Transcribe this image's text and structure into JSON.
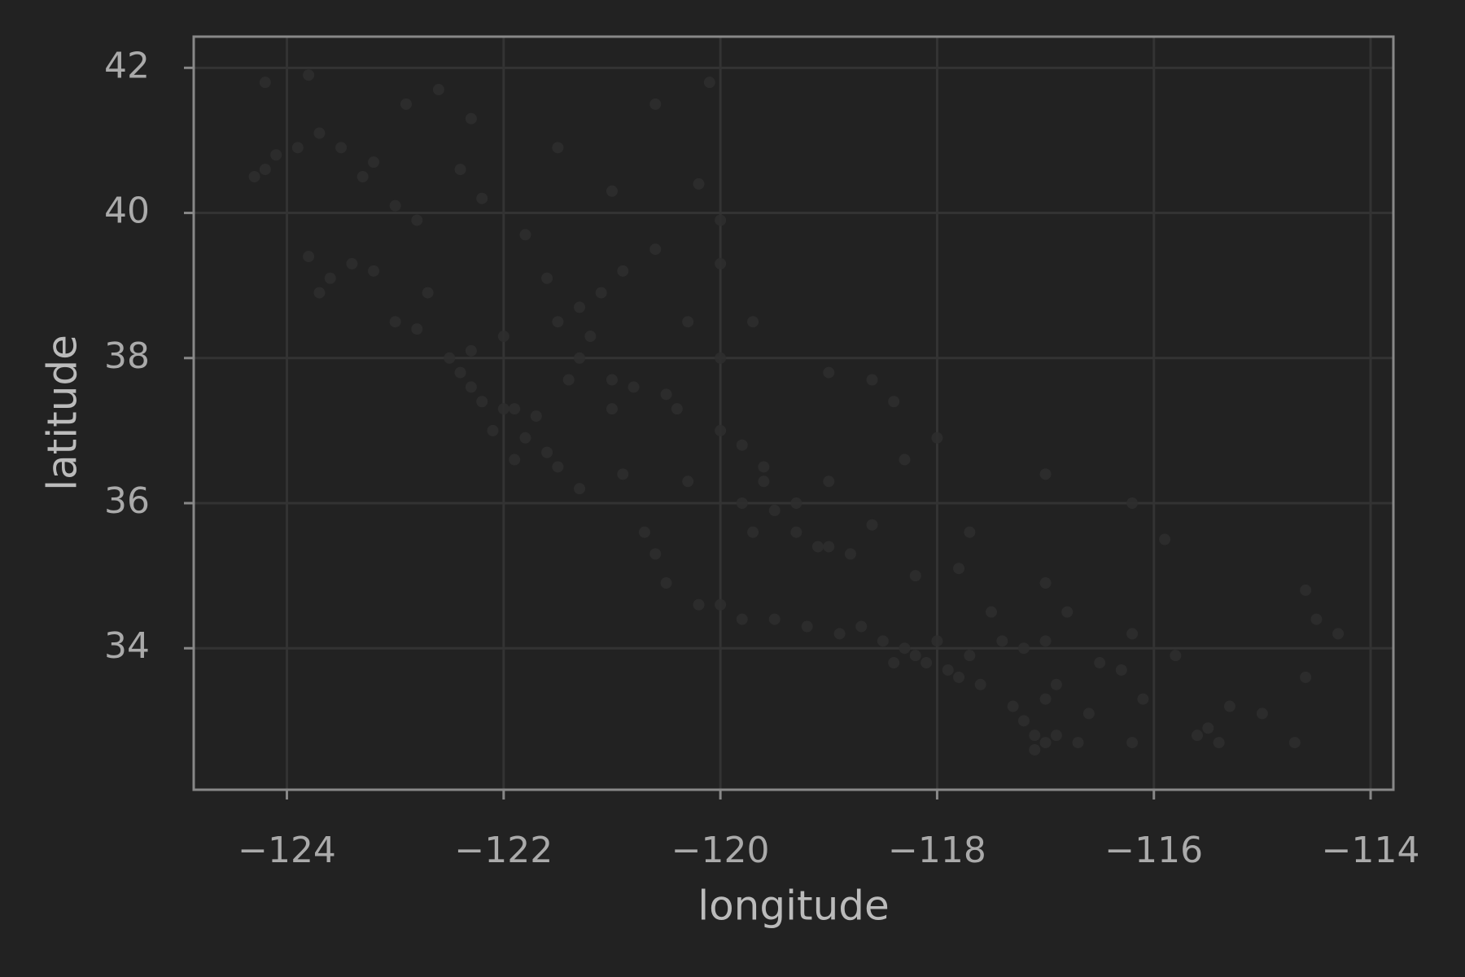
{
  "chart_data": {
    "type": "scatter",
    "xlabel": "longitude",
    "ylabel": "latitude",
    "color": "#2e2e2e",
    "grid": true,
    "xlim": [
      -124.86,
      -113.79
    ],
    "ylim": [
      32.05,
      42.43
    ],
    "xticks": [
      {
        "value": -124,
        "label": "−124"
      },
      {
        "value": -122,
        "label": "−122"
      },
      {
        "value": -120,
        "label": "−120"
      },
      {
        "value": -118,
        "label": "−118"
      },
      {
        "value": -116,
        "label": "−116"
      },
      {
        "value": -114,
        "label": "−114"
      }
    ],
    "yticks": [
      34,
      36,
      38,
      40,
      42
    ],
    "x": [
      -124.2,
      -124.1,
      -124.2,
      -123.9,
      -124.3,
      -123.8,
      -123.7,
      -123.5,
      -123.3,
      -123.8,
      -123.6,
      -123.4,
      -123.2,
      -123.7,
      -123.0,
      -122.8,
      -122.7,
      -122.5,
      -122.4,
      -122.3,
      -122.2,
      -122.0,
      -121.9,
      -121.9,
      -121.8,
      -121.6,
      -121.3,
      -120.7,
      -120.6,
      -120.5,
      -120.2,
      -119.8,
      -119.2,
      -118.9,
      -118.5,
      -118.3,
      -118.2,
      -118.1,
      -117.9,
      -117.8,
      -117.6,
      -117.3,
      -117.2,
      -117.1,
      -117.0,
      -117.1,
      -116.9,
      -117.4,
      -117.2,
      -117.0,
      -116.5,
      -116.3,
      -116.2,
      -115.8,
      -115.5,
      -115.6,
      -115.4,
      -115.3,
      -114.6,
      -114.5,
      -114.3,
      -114.6,
      -114.7,
      -115.0,
      -116.2,
      -115.9,
      -117.0,
      -117.7,
      -117.8,
      -118.2,
      -118.8,
      -119.0,
      -119.1,
      -119.3,
      -119.3,
      -119.6,
      -119.8,
      -120.0,
      -120.4,
      -120.5,
      -120.8,
      -121.0,
      -121.3,
      -121.5,
      -121.3,
      -121.1,
      -121.6,
      -121.8,
      -122.2,
      -122.4,
      -122.3,
      -122.6,
      -121.5,
      -120.6,
      -120.1,
      -120.2,
      -120.0,
      -120.0,
      -120.6,
      -121.0,
      -120.9,
      -121.2,
      -121.4,
      -121.7,
      -122.1,
      -121.5,
      -120.9,
      -120.3,
      -119.8,
      -119.5,
      -119.7,
      -119.6,
      -119.0,
      -118.6,
      -118.4,
      -118.6,
      -119.0,
      -118.3,
      -118.0,
      -122.0,
      -122.3,
      -121.0,
      -120.0,
      -120.3,
      -119.7,
      -122.8,
      -123.2,
      -122.9,
      -123.0,
      -120.0,
      -119.5,
      -118.7,
      -117.5,
      -117.0,
      -116.8,
      -117.7,
      -118.0,
      -118.4,
      -116.9,
      -116.6,
      -116.2,
      -116.1,
      -117.0,
      -116.7
    ],
    "y": [
      41.8,
      40.8,
      40.6,
      40.9,
      40.5,
      41.9,
      41.1,
      40.9,
      40.5,
      39.4,
      39.1,
      39.3,
      39.2,
      38.9,
      38.5,
      38.4,
      38.9,
      38.0,
      37.8,
      37.6,
      37.4,
      37.3,
      37.3,
      36.6,
      36.9,
      36.7,
      36.2,
      35.6,
      35.3,
      34.9,
      34.6,
      34.4,
      34.3,
      34.2,
      34.1,
      34.0,
      33.9,
      33.8,
      33.7,
      33.6,
      33.5,
      33.2,
      33.0,
      32.8,
      32.7,
      32.6,
      32.8,
      34.1,
      34.0,
      34.1,
      33.8,
      33.7,
      34.2,
      33.9,
      32.9,
      32.8,
      32.7,
      33.2,
      34.8,
      34.4,
      34.2,
      33.6,
      32.7,
      33.1,
      36.0,
      35.5,
      36.4,
      35.6,
      35.1,
      35.0,
      35.3,
      35.4,
      35.4,
      35.6,
      36.0,
      36.5,
      36.8,
      37.0,
      37.3,
      37.5,
      37.6,
      37.7,
      38.0,
      38.5,
      38.7,
      38.9,
      39.1,
      39.7,
      40.2,
      40.6,
      41.3,
      41.7,
      40.9,
      41.5,
      41.8,
      40.4,
      39.9,
      39.3,
      39.5,
      40.3,
      39.2,
      38.3,
      37.7,
      37.2,
      37.0,
      36.5,
      36.4,
      36.3,
      36.0,
      35.9,
      35.6,
      36.3,
      36.3,
      35.7,
      37.4,
      37.7,
      37.8,
      36.6,
      36.9,
      38.3,
      38.1,
      37.3,
      38.0,
      38.5,
      38.5,
      39.9,
      40.7,
      41.5,
      40.1,
      34.6,
      34.4,
      34.3,
      34.5,
      34.9,
      34.5,
      33.9,
      34.1,
      33.8,
      33.5,
      33.1,
      32.7,
      33.3,
      33.3,
      32.7
    ]
  }
}
